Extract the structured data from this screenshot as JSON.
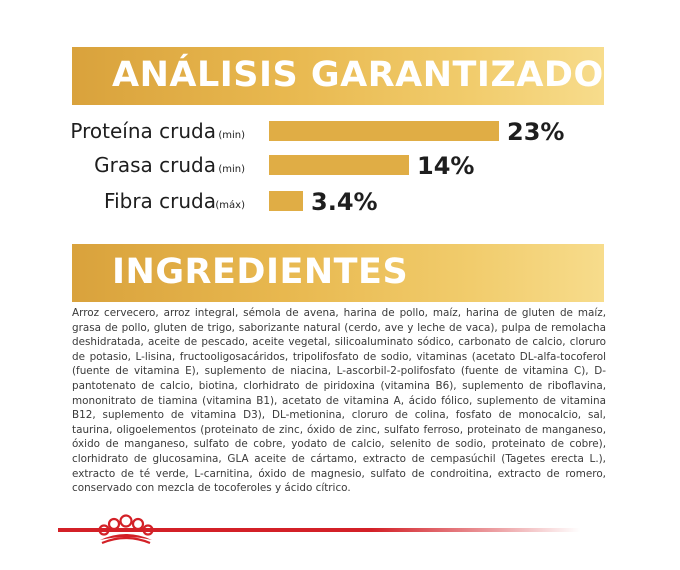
{
  "analysis": {
    "title": "ANÁLISIS GARANTIZADO"
  },
  "chart_data": {
    "type": "bar",
    "orientation": "horizontal",
    "title": "ANÁLISIS GARANTIZADO",
    "categories": [
      "Proteína cruda",
      "Grasa cruda",
      "Fibra cruda"
    ],
    "qualifiers": [
      "(min)",
      "(min)",
      "(máx)"
    ],
    "values": [
      23,
      14,
      3.4
    ],
    "value_labels": [
      "23%",
      "14%",
      "3.4%"
    ],
    "unit": "%",
    "xlim": [
      0,
      23
    ],
    "grid": false,
    "legend": "none",
    "bar_color": "#e0ad45"
  },
  "ingredients": {
    "title": "INGREDIENTES",
    "text": "Arroz cervecero, arroz integral, sémola de avena, harina de pollo, maíz, harina de gluten de maíz, grasa de pollo, gluten de trigo, saborizante natural (cerdo, ave y leche de vaca), pulpa de remolacha deshidratada, aceite de pescado, aceite vegetal, silicoaluminato sódico, carbonato de calcio, cloruro de potasio, L-lisina, fructooligosacáridos, tripolifosfato de sodio, vitaminas (acetato DL-alfa-tocoferol (fuente de vitamina E), suplemento de niacina, L-ascorbil-2-polifosfato (fuente de vitamina C), D-pantotenato de calcio, biotina, clorhidrato de piridoxina (vitamina B6), suplemento de riboflavina, mononitrato de tiamina (vitamina B1), acetato de vitamina A, ácido fólico, suplemento de vitamina B12, suplemento de vitamina D3), DL-metionina, cloruro de colina, fosfato de monocalcio, sal, taurina, oligoelementos (proteinato de zinc, óxido de zinc, sulfato ferroso, proteinato de manganeso, óxido de manganeso, sulfato de cobre, yodato de calcio, selenito de sodio, proteinato de cobre), clorhidrato de glucosamina, GLA aceite de cártamo, extracto de cempasúchil (Tagetes erecta L.), extracto de té verde, L-carnitina, óxido de magnesio, sulfato de condroitina, extracto de romero, conservado con mezcla de tocoferoles y ácido cítrico."
  },
  "colors": {
    "accent_gold": "#e0ad45",
    "footer_red": "#d32027"
  },
  "footer": {
    "logo_icon": "royal-canin-crown-icon"
  }
}
